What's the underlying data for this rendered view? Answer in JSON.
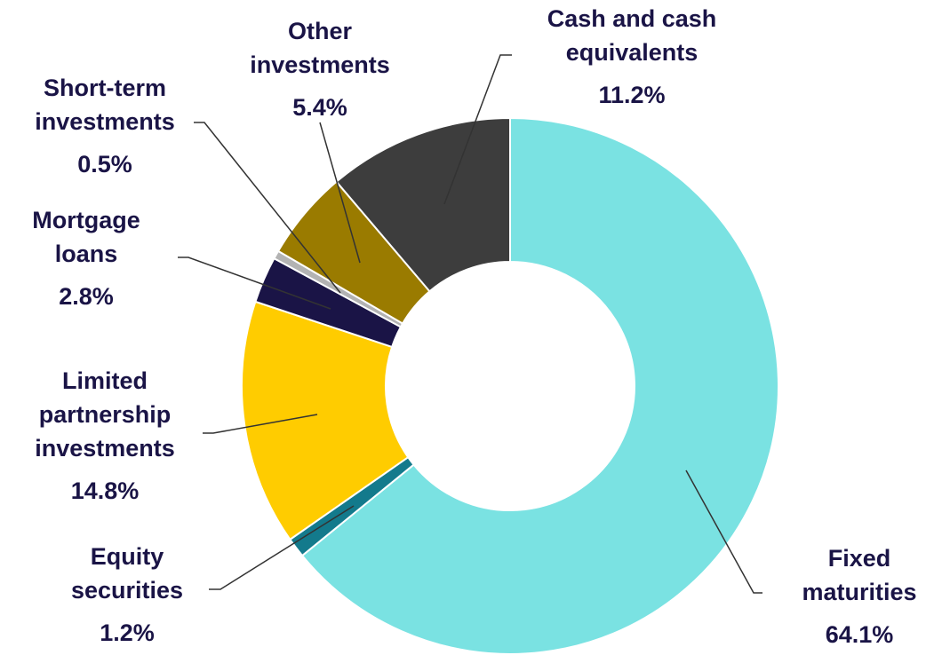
{
  "chart_data": {
    "type": "donut",
    "categories": [
      "Fixed\nmaturities",
      "Equity\nsecurities",
      "Limited\npartnership\ninvestments",
      "Mortgage\nloans",
      "Short-term\ninvestments",
      "Other\ninvestments",
      "Cash and cash\nequivalents"
    ],
    "values": [
      64.1,
      1.2,
      14.8,
      2.8,
      0.5,
      5.4,
      11.2
    ],
    "value_labels": [
      "64.1%",
      "1.2%",
      "14.8%",
      "2.8%",
      "0.5%",
      "5.4%",
      "11.2%"
    ],
    "colors": [
      "#7ae2e2",
      "#137a8c",
      "#ffcc00",
      "#1a1446",
      "#b3b3b3",
      "#9a7b00",
      "#3d3d3d"
    ]
  }
}
